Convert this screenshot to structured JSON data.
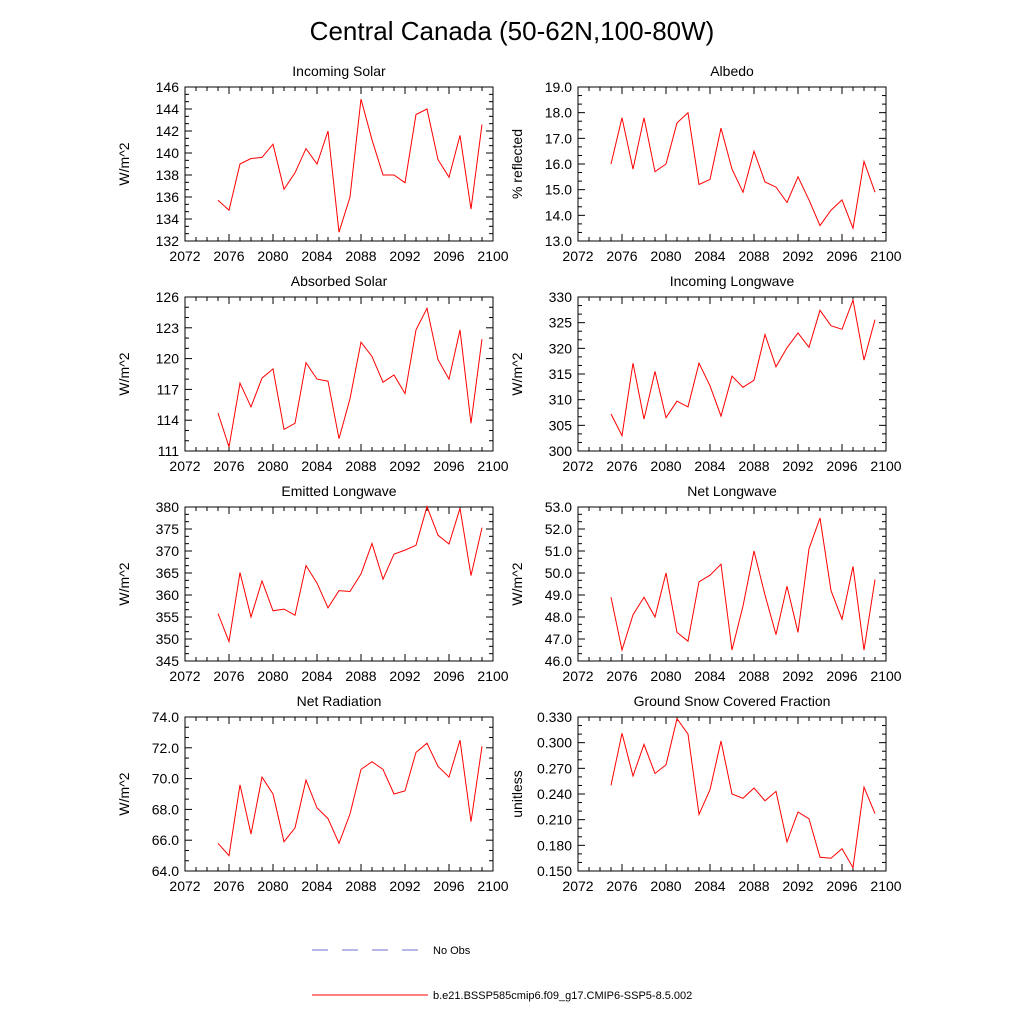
{
  "title": "Central Canada (50-62N,100-80W)",
  "series_color": "#ff0000",
  "obs_color": "#6f6fd0",
  "legend": {
    "obs_label": "No Obs",
    "model_label": "b.e21.BSSP585cmip6.f09_g17.CMIP6-SSP5-8.5.002"
  },
  "chart_data": [
    {
      "type": "line",
      "title": "Incoming Solar",
      "ylabel": "W/m^2",
      "xlim": [
        2072,
        2100
      ],
      "xticks": [
        2072,
        2076,
        2080,
        2084,
        2088,
        2092,
        2096,
        2100
      ],
      "ylim": [
        132,
        146
      ],
      "yticks": [
        "132",
        "134",
        "136",
        "138",
        "140",
        "142",
        "144",
        "146"
      ],
      "x": [
        2075,
        2076,
        2077,
        2078,
        2079,
        2080,
        2081,
        2082,
        2083,
        2084,
        2085,
        2086,
        2087,
        2088,
        2089,
        2090,
        2091,
        2092,
        2093,
        2094,
        2095,
        2096,
        2097,
        2098,
        2099
      ],
      "y": [
        135.7,
        134.8,
        139.0,
        139.5,
        139.6,
        140.8,
        136.7,
        138.2,
        140.4,
        139.0,
        142.0,
        132.8,
        136.0,
        144.9,
        141.2,
        138.0,
        138.0,
        137.3,
        143.5,
        144.0,
        139.4,
        137.8,
        141.6,
        134.9,
        142.6
      ]
    },
    {
      "type": "line",
      "title": "Albedo",
      "ylabel": "% reflected",
      "xlim": [
        2072,
        2100
      ],
      "xticks": [
        2072,
        2076,
        2080,
        2084,
        2088,
        2092,
        2096,
        2100
      ],
      "ylim": [
        13,
        19
      ],
      "yticks": [
        "13.0",
        "14.0",
        "15.0",
        "16.0",
        "17.0",
        "18.0",
        "19.0"
      ],
      "x": [
        2075,
        2076,
        2077,
        2078,
        2079,
        2080,
        2081,
        2082,
        2083,
        2084,
        2085,
        2086,
        2087,
        2088,
        2089,
        2090,
        2091,
        2092,
        2093,
        2094,
        2095,
        2096,
        2097,
        2098,
        2099
      ],
      "y": [
        16.0,
        17.8,
        15.8,
        17.8,
        15.7,
        16.0,
        17.6,
        18.0,
        15.2,
        15.4,
        17.4,
        15.8,
        14.9,
        16.5,
        15.3,
        15.1,
        14.5,
        15.5,
        14.6,
        13.6,
        14.2,
        14.6,
        13.5,
        16.1,
        14.9
      ]
    },
    {
      "type": "line",
      "title": "Absorbed Solar",
      "ylabel": "W/m^2",
      "xlim": [
        2072,
        2100
      ],
      "xticks": [
        2072,
        2076,
        2080,
        2084,
        2088,
        2092,
        2096,
        2100
      ],
      "ylim": [
        111,
        126
      ],
      "yticks": [
        "111",
        "114",
        "117",
        "120",
        "123",
        "126"
      ],
      "x": [
        2075,
        2076,
        2077,
        2078,
        2079,
        2080,
        2081,
        2082,
        2083,
        2084,
        2085,
        2086,
        2087,
        2088,
        2089,
        2090,
        2091,
        2092,
        2093,
        2094,
        2095,
        2096,
        2097,
        2098,
        2099
      ],
      "y": [
        114.7,
        111.4,
        117.6,
        115.3,
        118.1,
        119.0,
        113.1,
        113.7,
        119.6,
        118.0,
        117.8,
        112.2,
        116.1,
        121.6,
        120.2,
        117.7,
        118.4,
        116.6,
        122.8,
        124.9,
        119.9,
        118.0,
        122.8,
        113.7,
        121.9
      ]
    },
    {
      "type": "line",
      "title": "Incoming Longwave",
      "ylabel": "W/m^2",
      "xlim": [
        2072,
        2100
      ],
      "xticks": [
        2072,
        2076,
        2080,
        2084,
        2088,
        2092,
        2096,
        2100
      ],
      "ylim": [
        300,
        330
      ],
      "yticks": [
        "300",
        "305",
        "310",
        "315",
        "320",
        "325",
        "330"
      ],
      "x": [
        2075,
        2076,
        2077,
        2078,
        2079,
        2080,
        2081,
        2082,
        2083,
        2084,
        2085,
        2086,
        2087,
        2088,
        2089,
        2090,
        2091,
        2092,
        2093,
        2094,
        2095,
        2096,
        2097,
        2098,
        2099
      ],
      "y": [
        307.2,
        303.0,
        317.1,
        306.2,
        315.5,
        306.5,
        309.7,
        308.6,
        317.1,
        312.7,
        306.8,
        314.6,
        312.4,
        313.8,
        322.7,
        316.4,
        320.1,
        323.0,
        320.2,
        327.4,
        324.4,
        323.7,
        329.4,
        317.7,
        325.6
      ]
    },
    {
      "type": "line",
      "title": "Emitted Longwave",
      "ylabel": "W/m^2",
      "xlim": [
        2072,
        2100
      ],
      "xticks": [
        2072,
        2076,
        2080,
        2084,
        2088,
        2092,
        2096,
        2100
      ],
      "ylim": [
        345,
        380
      ],
      "yticks": [
        "345",
        "350",
        "355",
        "360",
        "365",
        "370",
        "375",
        "380"
      ],
      "x": [
        2075,
        2076,
        2077,
        2078,
        2079,
        2080,
        2081,
        2082,
        2083,
        2084,
        2085,
        2086,
        2087,
        2088,
        2089,
        2090,
        2091,
        2092,
        2093,
        2094,
        2095,
        2096,
        2097,
        2098,
        2099
      ],
      "y": [
        355.8,
        349.4,
        365.1,
        355.0,
        363.2,
        356.4,
        356.8,
        355.4,
        366.7,
        362.7,
        357.1,
        361.0,
        360.8,
        364.8,
        371.7,
        363.6,
        369.3,
        370.2,
        371.3,
        380.1,
        373.6,
        371.6,
        379.7,
        364.4,
        375.3
      ]
    },
    {
      "type": "line",
      "title": "Net Longwave",
      "ylabel": "W/m^2",
      "xlim": [
        2072,
        2100
      ],
      "xticks": [
        2072,
        2076,
        2080,
        2084,
        2088,
        2092,
        2096,
        2100
      ],
      "ylim": [
        46,
        53
      ],
      "yticks": [
        "46.0",
        "47.0",
        "48.0",
        "49.0",
        "50.0",
        "51.0",
        "52.0",
        "53.0"
      ],
      "x": [
        2075,
        2076,
        2077,
        2078,
        2079,
        2080,
        2081,
        2082,
        2083,
        2084,
        2085,
        2086,
        2087,
        2088,
        2089,
        2090,
        2091,
        2092,
        2093,
        2094,
        2095,
        2096,
        2097,
        2098,
        2099
      ],
      "y": [
        48.9,
        46.5,
        48.1,
        48.9,
        48.0,
        50.0,
        47.3,
        46.9,
        49.6,
        49.9,
        50.4,
        46.5,
        48.5,
        51.0,
        49.0,
        47.2,
        49.4,
        47.3,
        51.1,
        52.5,
        49.2,
        47.9,
        50.3,
        46.5,
        49.7
      ]
    },
    {
      "type": "line",
      "title": "Net Radiation",
      "ylabel": "W/m^2",
      "xlim": [
        2072,
        2100
      ],
      "xticks": [
        2072,
        2076,
        2080,
        2084,
        2088,
        2092,
        2096,
        2100
      ],
      "ylim": [
        64,
        74
      ],
      "yticks": [
        "64.0",
        "66.0",
        "68.0",
        "70.0",
        "72.0",
        "74.0"
      ],
      "x": [
        2075,
        2076,
        2077,
        2078,
        2079,
        2080,
        2081,
        2082,
        2083,
        2084,
        2085,
        2086,
        2087,
        2088,
        2089,
        2090,
        2091,
        2092,
        2093,
        2094,
        2095,
        2096,
        2097,
        2098,
        2099
      ],
      "y": [
        65.8,
        65.0,
        69.6,
        66.4,
        70.1,
        69.0,
        65.9,
        66.8,
        69.9,
        68.1,
        67.4,
        65.8,
        67.7,
        70.6,
        71.1,
        70.6,
        69.0,
        69.2,
        71.7,
        72.3,
        70.8,
        70.1,
        72.5,
        67.2,
        72.1
      ]
    },
    {
      "type": "line",
      "title": "Ground Snow Covered Fraction",
      "ylabel": "unitless",
      "xlim": [
        2072,
        2100
      ],
      "xticks": [
        2072,
        2076,
        2080,
        2084,
        2088,
        2092,
        2096,
        2100
      ],
      "ylim": [
        0.15,
        0.33
      ],
      "yticks": [
        "0.150",
        "0.180",
        "0.210",
        "0.240",
        "0.270",
        "0.300",
        "0.330"
      ],
      "x": [
        2075,
        2076,
        2077,
        2078,
        2079,
        2080,
        2081,
        2082,
        2083,
        2084,
        2085,
        2086,
        2087,
        2088,
        2089,
        2090,
        2091,
        2092,
        2093,
        2094,
        2095,
        2096,
        2097,
        2098,
        2099
      ],
      "y": [
        0.25,
        0.311,
        0.261,
        0.298,
        0.264,
        0.274,
        0.328,
        0.31,
        0.216,
        0.245,
        0.302,
        0.24,
        0.235,
        0.247,
        0.232,
        0.243,
        0.184,
        0.219,
        0.211,
        0.166,
        0.165,
        0.176,
        0.154,
        0.248,
        0.217
      ]
    }
  ]
}
